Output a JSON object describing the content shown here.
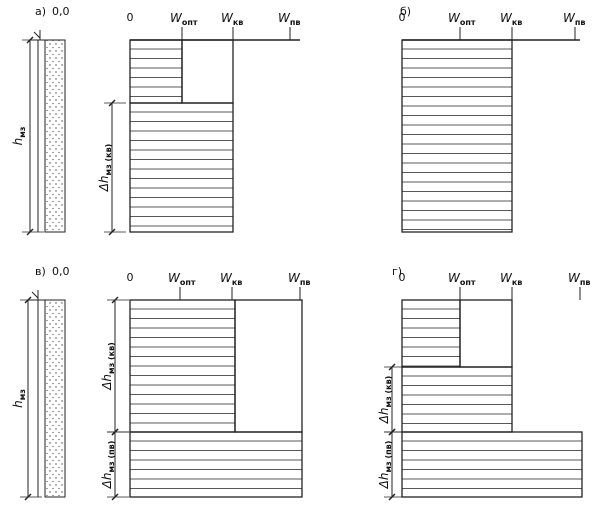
{
  "panels": [
    {
      "label": "а)",
      "surface_mark": "0,0",
      "thickness": {
        "main": "h",
        "sub": "мз"
      },
      "zero": "0",
      "moisture_labels": [
        {
          "main": "W",
          "sub": "опт"
        },
        {
          "main": "W",
          "sub": "кв"
        },
        {
          "main": "W",
          "sub": "пв"
        }
      ],
      "layers": [
        {
          "main": "Δh",
          "sub": "мз (кв)"
        }
      ]
    },
    {
      "label": "б)",
      "zero": "0",
      "moisture_labels": [
        {
          "main": "W",
          "sub": "опт"
        },
        {
          "main": "W",
          "sub": "кв"
        },
        {
          "main": "W",
          "sub": "пв"
        }
      ]
    },
    {
      "label": "в)",
      "surface_mark": "0,0",
      "thickness": {
        "main": "h",
        "sub": "мз"
      },
      "zero": "0",
      "moisture_labels": [
        {
          "main": "W",
          "sub": "опт"
        },
        {
          "main": "W",
          "sub": "кв"
        },
        {
          "main": "W",
          "sub": "пв"
        }
      ],
      "layers": [
        {
          "main": "Δh",
          "sub": "мз (кв)"
        },
        {
          "main": "Δh",
          "sub": "мз (пв)"
        }
      ]
    },
    {
      "label": "г)",
      "zero": "0",
      "moisture_labels": [
        {
          "main": "W",
          "sub": "опт"
        },
        {
          "main": "W",
          "sub": "кв"
        },
        {
          "main": "W",
          "sub": "пв"
        }
      ],
      "layers": [
        {
          "main": "Δh",
          "sub": "мз (кв)"
        },
        {
          "main": "Δh",
          "sub": "мз (пв)"
        }
      ]
    }
  ]
}
